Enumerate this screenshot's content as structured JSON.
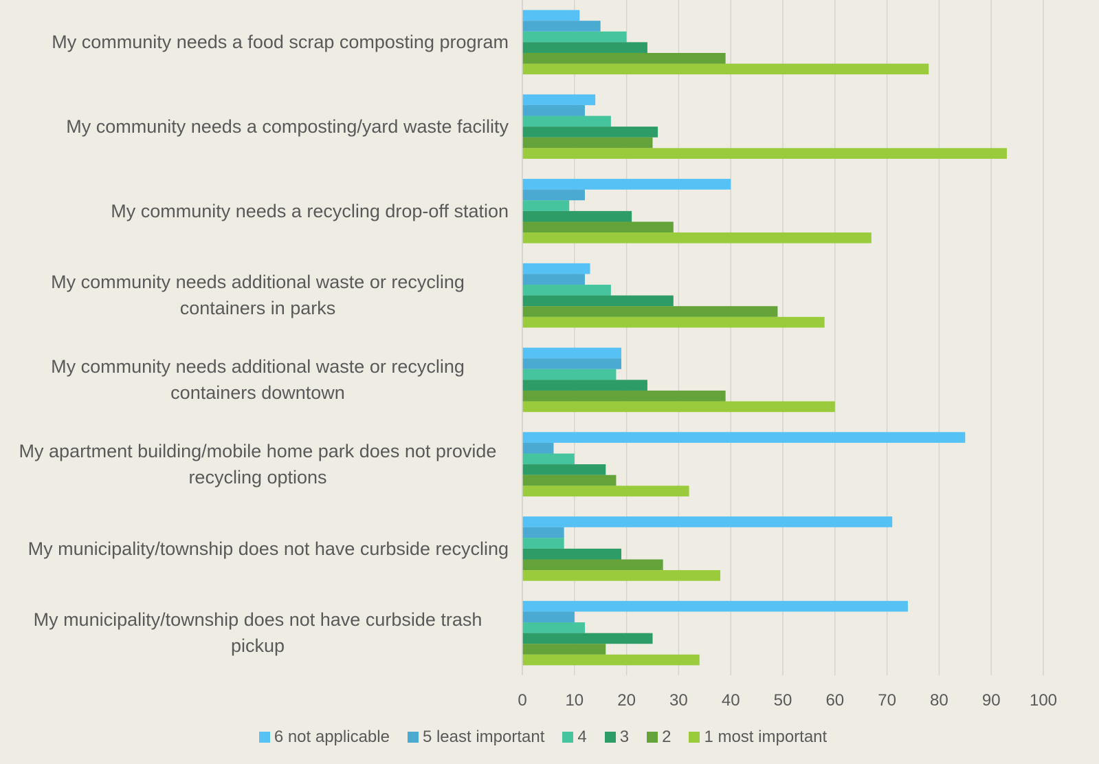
{
  "chart_data": {
    "type": "barh",
    "categories": [
      "My community needs a food scrap composting program",
      "My community needs a composting/yard waste facility",
      "My community needs a recycling drop-off station",
      "My community needs additional waste or recycling containers in parks",
      "My community needs additional waste or recycling containers downtown",
      "My apartment building/mobile home park does not provide recycling options",
      "My municipality/township does not have curbside recycling",
      "My municipality/township does not have curbside trash pickup"
    ],
    "series": [
      {
        "name": "6 not applicable",
        "color": "#55c1f5",
        "values": [
          11,
          14,
          40,
          13,
          19,
          85,
          71,
          74
        ]
      },
      {
        "name": "5 least important",
        "color": "#4aaad2",
        "values": [
          15,
          12,
          12,
          12,
          19,
          6,
          8,
          10
        ]
      },
      {
        "name": "4",
        "color": "#45c49e",
        "values": [
          20,
          17,
          9,
          17,
          18,
          10,
          8,
          12
        ]
      },
      {
        "name": "3",
        "color": "#2e9c66",
        "values": [
          24,
          26,
          21,
          29,
          24,
          16,
          19,
          25
        ]
      },
      {
        "name": "2",
        "color": "#63a33a",
        "values": [
          39,
          25,
          29,
          49,
          39,
          18,
          27,
          16
        ]
      },
      {
        "name": "1 most important",
        "color": "#9acb3c",
        "values": [
          78,
          93,
          67,
          58,
          60,
          32,
          38,
          34
        ]
      }
    ],
    "xlim": [
      0,
      100
    ],
    "xticks": [
      0,
      10,
      20,
      30,
      40,
      50,
      60,
      70,
      80,
      90,
      100
    ],
    "grid": true
  }
}
